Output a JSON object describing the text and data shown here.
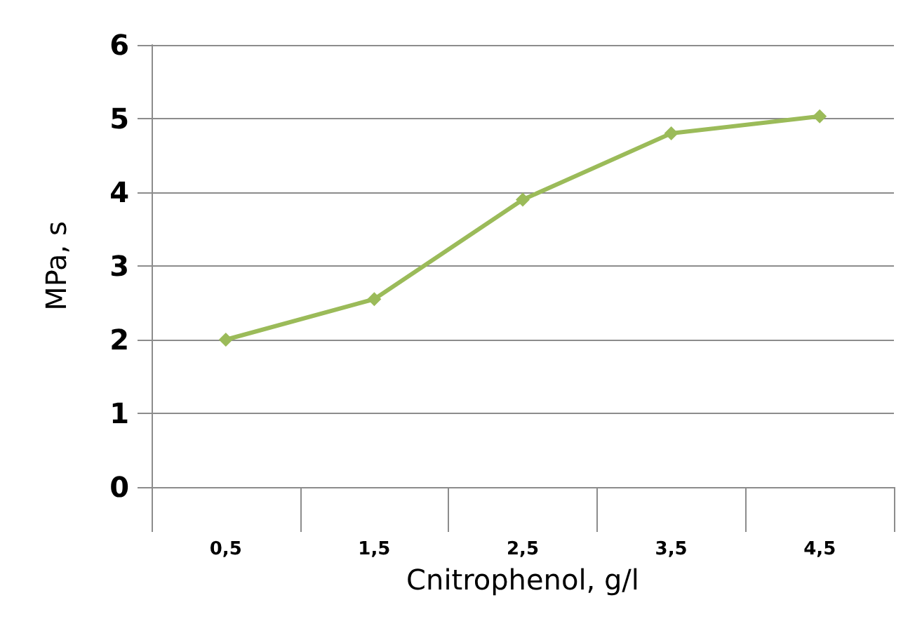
{
  "chart_data": {
    "type": "line",
    "xlabel": "Cnitrophenol, g/l",
    "ylabel": "MPa, s",
    "categories": [
      "0,5",
      "1,5",
      "2,5",
      "3,5",
      "4,5"
    ],
    "series": [
      {
        "color": "#9bbb59",
        "values": [
          2.0,
          2.55,
          3.9,
          4.8,
          5.03
        ]
      }
    ],
    "ylim": [
      0,
      6
    ],
    "yticks": [
      0,
      1,
      2,
      3,
      4,
      5,
      6
    ],
    "grid": "y",
    "marker": "diamond",
    "line_style": "solid"
  }
}
